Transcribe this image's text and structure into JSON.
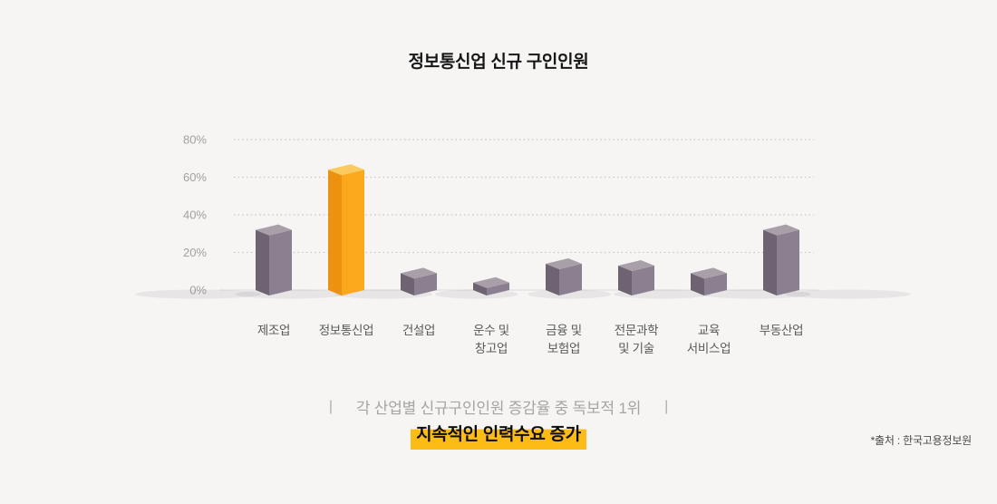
{
  "title": "정보통신업 신규 구인인원",
  "chart_data": {
    "type": "bar",
    "title": "정보통신업 신규 구인인원",
    "categories": [
      "제조업",
      "정보통신업",
      "건설업",
      "운수 및 창고업",
      "금융 및 보험업",
      "전문과학 및 기술",
      "교육 서비스업",
      "부동산업"
    ],
    "category_lines": [
      [
        "제조업"
      ],
      [
        "정보통신업"
      ],
      [
        "건설업"
      ],
      [
        "운수 및",
        "창고업"
      ],
      [
        "금융 및",
        "보험업"
      ],
      [
        "전문과학",
        "및 기술"
      ],
      [
        "교육",
        "서비스업"
      ],
      [
        "부동산업"
      ]
    ],
    "values": [
      32,
      64,
      9,
      4,
      14,
      13,
      9,
      32
    ],
    "unit": "%",
    "ylim": [
      0,
      80
    ],
    "yticks": [
      80,
      60,
      40,
      20,
      0
    ],
    "ytick_labels": [
      "80%",
      "60%",
      "40%",
      "20%",
      "0%"
    ],
    "grid": "horizontal-dotted",
    "legend": "none",
    "highlight_index": 1,
    "colors": {
      "bar_front": "#8b8090",
      "bar_side": "#6e6371",
      "bar_top": "#a99fa9",
      "highlight_front": "#fba81c",
      "highlight_side": "#ec9110",
      "highlight_top": "#fbca5e",
      "grid_dots": "#c8c5c2",
      "baseline": "#e4e1de",
      "tick_label": "#a3a09d",
      "category_label": "#595959",
      "shadow": "rgba(100,90,105,0.10)"
    }
  },
  "caption": {
    "separator_left": "|",
    "text": "각 산업별 신규구인인원 증감율 중 독보적 1위",
    "separator_right": "|"
  },
  "emphasis": {
    "text": "지속적인 인력수요 증가",
    "highlight_color": "#fdbc15"
  },
  "source": "*출처 : 한국고용정보원",
  "background_color": "#f6f5f4"
}
